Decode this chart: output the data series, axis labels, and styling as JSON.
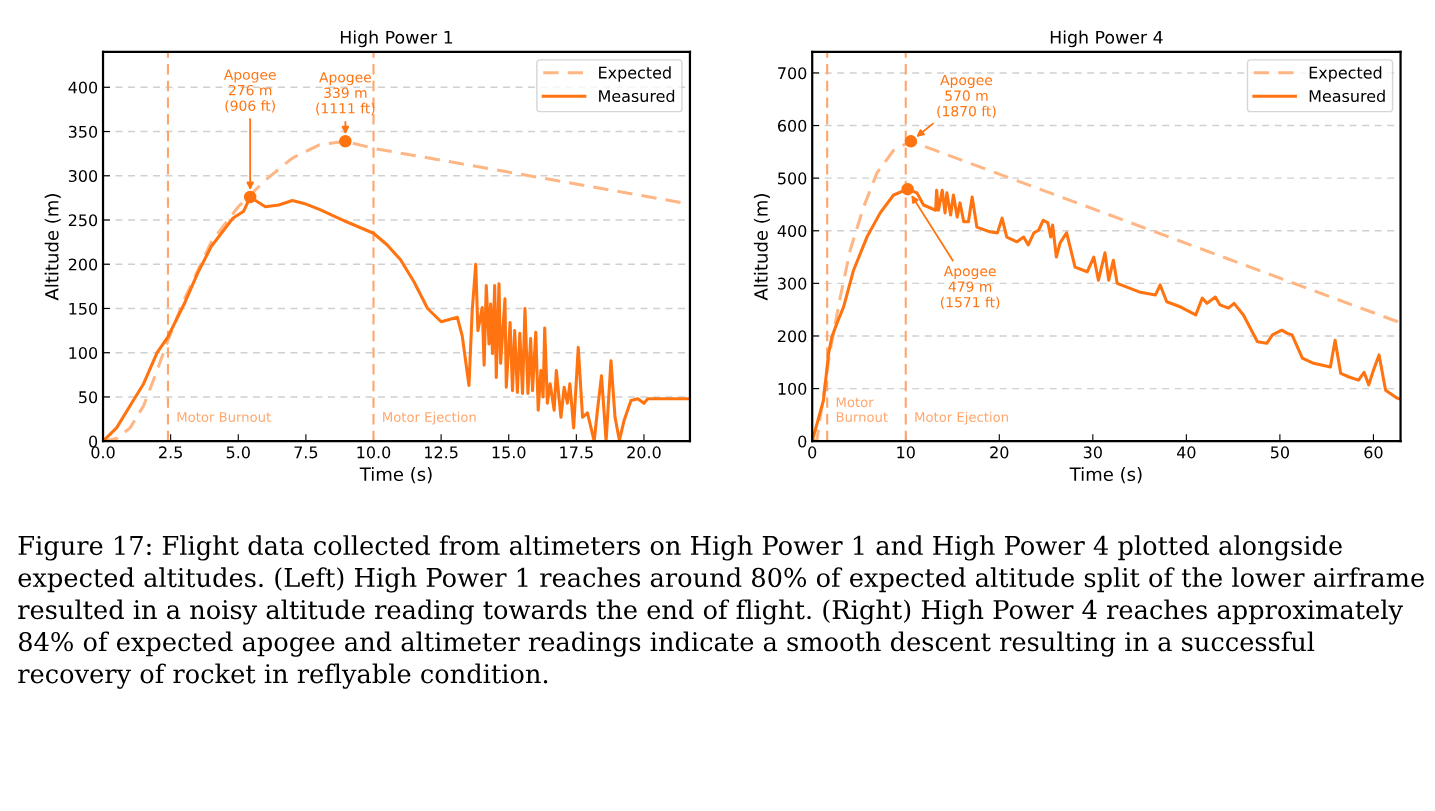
{
  "chart_data": [
    {
      "type": "line",
      "title": "High Power 1",
      "xlabel": "Time (s)",
      "ylabel": "Altitude (m)",
      "xlim": [
        0,
        21.7
      ],
      "ylim": [
        0,
        440
      ],
      "xticks": [
        {
          "value": 0,
          "label": "0.0"
        },
        2.5,
        {
          "value": 5,
          "label": "5.0"
        },
        7.5,
        {
          "value": 10,
          "label": "10.0"
        },
        12.5,
        {
          "value": 15,
          "label": "15.0"
        },
        17.5,
        {
          "value": 20,
          "label": "20.0"
        }
      ],
      "yticks": [
        0,
        50,
        100,
        150,
        200,
        250,
        300,
        350,
        400
      ],
      "grid": "y",
      "legend": "top right",
      "line_style": "solid",
      "marker": "none",
      "series": [
        {
          "name": "Expected",
          "color": "#ffb685",
          "line_style": "dashed",
          "x": [
            0,
            0.5,
            1,
            1.5,
            2,
            2.4,
            3,
            4,
            5,
            6,
            7,
            8,
            8.96,
            10,
            21.7
          ],
          "values": [
            0,
            3,
            15,
            40,
            80,
            114,
            160,
            225,
            265,
            295,
            320,
            335,
            339,
            331,
            268
          ]
        },
        {
          "name": "Measured",
          "color": "#ff7410",
          "x": [
            0,
            0.5,
            1,
            1.5,
            2,
            2.4,
            3,
            3.5,
            4,
            4.5,
            4.8,
            5.2,
            5.44,
            6,
            6.5,
            7,
            7.5,
            8,
            8.5,
            9,
            10,
            10.5,
            11,
            11.5,
            12,
            12.5,
            13.1,
            13.28,
            13.53,
            13.65,
            13.78,
            13.86,
            14.02,
            14.09,
            14.17,
            14.27,
            14.33,
            14.4,
            14.48,
            14.54,
            14.64,
            14.7,
            14.86,
            14.91,
            15.05,
            15.14,
            15.22,
            15.32,
            15.41,
            15.51,
            15.6,
            15.71,
            15.81,
            15.88,
            16.0,
            16.09,
            16.19,
            16.27,
            16.33,
            16.43,
            16.53,
            16.68,
            16.76,
            16.93,
            17.05,
            17.17,
            17.26,
            17.4,
            17.57,
            17.73,
            17.91,
            18.16,
            18.28,
            18.43,
            18.6,
            18.78,
            18.93,
            19.09,
            19.27,
            19.52,
            19.77,
            20.0,
            20.14,
            21.7
          ],
          "values": [
            0,
            15,
            40,
            65,
            100,
            118,
            155,
            190,
            220,
            240,
            252,
            260,
            276,
            265,
            267,
            272,
            268,
            262,
            255,
            248,
            235,
            222,
            205,
            180,
            150,
            135,
            140,
            119,
            63,
            148,
            200,
            125,
            151,
            86,
            176,
            110,
            155,
            99,
            176,
            72,
            178,
            88,
            161,
            61,
            134,
            57,
            125,
            55,
            122,
            54,
            150,
            54,
            116,
            57,
            123,
            35,
            80,
            50,
            128,
            43,
            65,
            35,
            80,
            27,
            61,
            43,
            65,
            15,
            106,
            27,
            32,
            0,
            35,
            74,
            0,
            91,
            27,
            1,
            24,
            46,
            48,
            43,
            48,
            48
          ]
        }
      ],
      "ref_lines": [
        {
          "axis": "x",
          "value": 2.4,
          "label": "Motor Burnout",
          "color": "#ffa56a",
          "line_style": "dashed"
        },
        {
          "axis": "x",
          "value": 10.0,
          "label": "Motor Ejection",
          "color": "#ffa56a",
          "line_style": "dashed"
        }
      ],
      "annotations": [
        {
          "text": "Apogee\n276 m\n(906 ft)",
          "x": 5.44,
          "y": 276
        },
        {
          "text": "Apogee\n339 m\n(1111 ft)",
          "x": 8.96,
          "y": 339
        },
        "Figure 17: Flight data collected from altimeters on High Power 1 and High Power 4 plotted alongside expected altitudes. (Left) High Power 1 reaches around 80% of expected altitude split of the lower airframe resulted in a noisy altitude reading towards the end of flight. (Right) High Power 4 reaches approximately 84% of expected apogee and altimeter readings indicate a smooth descent resulting in a successful recovery of rocket in reflyable condition."
      ]
    },
    {
      "type": "line",
      "title": "High Power 4",
      "xlabel": "Time (s)",
      "ylabel": "Altitude (m)",
      "xlim": [
        0,
        62.9
      ],
      "ylim": [
        0,
        740
      ],
      "xticks": [
        0,
        10,
        20,
        30,
        40,
        50,
        60
      ],
      "yticks": [
        0,
        100,
        200,
        300,
        400,
        500,
        600,
        700
      ],
      "grid": "y",
      "legend": "top right",
      "line_style": "solid",
      "marker": "none",
      "series": [
        {
          "name": "Expected",
          "color": "#ffb685",
          "line_style": "dashed",
          "x": [
            0,
            0.5,
            1.39,
            1.93,
            3.0,
            4.06,
            5.49,
            6.92,
            8.7,
            10.55,
            62.9
          ],
          "values": [
            0,
            2,
            110,
            173,
            274,
            363,
            445,
            510,
            553,
            570,
            225
          ]
        },
        {
          "name": "Measured",
          "color": "#ff7410",
          "x": [
            0,
            1.21,
            1.75,
            2.1,
            2.64,
            3.35,
            4.42,
            5.85,
            7.27,
            8.7,
            10.2,
            11.2,
            11.9,
            13.2,
            13.3,
            13.5,
            13.9,
            14.2,
            14.4,
            14.8,
            15.1,
            15.5,
            15.8,
            16.2,
            16.7,
            17.1,
            17.6,
            19.0,
            19.8,
            20.3,
            20.8,
            21.9,
            22.6,
            23.1,
            23.7,
            24.2,
            24.7,
            25.2,
            25.5,
            25.7,
            26.1,
            26.5,
            27.2,
            28.1,
            29.4,
            30.1,
            30.6,
            31.3,
            31.7,
            32.2,
            32.6,
            35.1,
            36.7,
            37.2,
            37.9,
            39.4,
            41.0,
            41.7,
            42.2,
            43.1,
            43.6,
            44.5,
            45.1,
            46.1,
            47.6,
            48.6,
            49.2,
            50.2,
            50.8,
            51.3,
            52.4,
            53.6,
            55.4,
            55.9,
            56.5,
            57.4,
            58.4,
            59.0,
            59.5,
            60.0,
            60.6,
            61.3,
            62.5,
            62.9
          ],
          "values": [
            0,
            78,
            167,
            198,
            224,
            255,
            325,
            388,
            434,
            468,
            479,
            472,
            449,
            439,
            477,
            439,
            477,
            434,
            472,
            430,
            468,
            426,
            453,
            417,
            417,
            464,
            407,
            398,
            396,
            424,
            388,
            379,
            388,
            373,
            396,
            401,
            420,
            415,
            388,
            411,
            350,
            377,
            396,
            331,
            322,
            350,
            306,
            358,
            306,
            344,
            300,
            283,
            278,
            297,
            265,
            255,
            240,
            272,
            262,
            274,
            259,
            253,
            262,
            240,
            189,
            186,
            202,
            211,
            205,
            202,
            158,
            148,
            141,
            192,
            129,
            122,
            116,
            131,
            107,
            135,
            164,
            97,
            82,
            80
          ]
        }
      ],
      "ref_lines": [
        {
          "axis": "x",
          "value": 1.6,
          "label": "Motor\nBurnout",
          "color": "#ffa56a",
          "line_style": "dashed"
        },
        {
          "axis": "x",
          "value": 10.0,
          "label": "Motor Ejection",
          "color": "#ffa56a",
          "line_style": "dashed"
        }
      ],
      "annotations": [
        {
          "text": "Apogee\n570 m\n(1870 ft)",
          "x": 10.55,
          "y": 570
        },
        {
          "text": "Apogee\n479 m\n(1571 ft)",
          "x": 10.2,
          "y": 479
        }
      ]
    }
  ]
}
